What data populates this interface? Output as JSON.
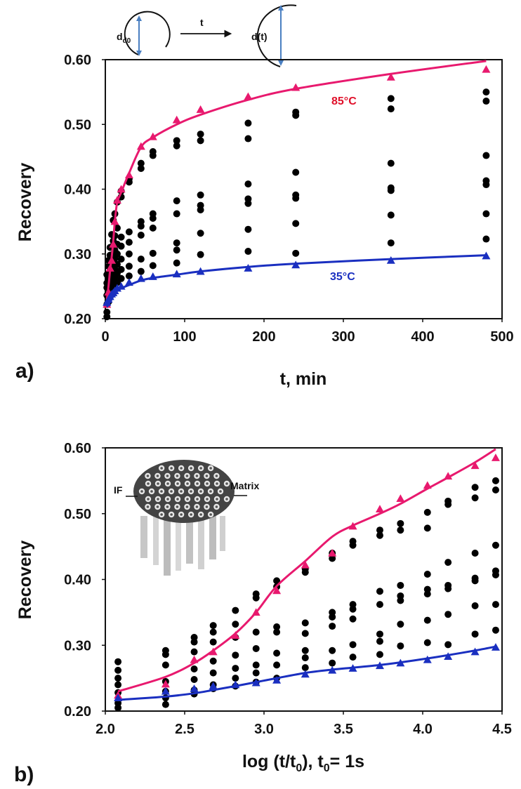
{
  "figure": {
    "panel_a_label": "a)",
    "panel_b_label": "b)",
    "inset_a": {
      "d0": "d0",
      "arrow_label": "t",
      "dt": "d(t)"
    },
    "inset_b": {
      "left_label": "IF",
      "right_label": "Matrix"
    }
  },
  "colors": {
    "hot": "#e8196e",
    "cold": "#1a2fc0",
    "points": "#000000",
    "label_hot": "#e0102a"
  },
  "chart_data": [
    {
      "type": "scatter",
      "xlabel": "t, min",
      "ylabel": "Recovery",
      "xlim": [
        0,
        500
      ],
      "ylim": [
        0.2,
        0.6
      ],
      "xticks": [
        "0",
        "100",
        "200",
        "300",
        "400",
        "500"
      ],
      "yticks": [
        "0.20",
        "0.30",
        "0.40",
        "0.50",
        "0.60"
      ],
      "x": [
        2,
        4,
        6,
        8,
        10,
        12,
        15,
        20,
        30,
        45,
        60,
        90,
        120,
        180,
        240,
        360,
        480
      ],
      "scatter_y": [
        [
          0.268,
          0.255,
          0.248,
          0.236,
          0.222,
          0.21,
          0.203
        ],
        [
          0.29,
          0.281,
          0.27,
          0.26,
          0.248,
          0.238,
          0.226
        ],
        [
          0.31,
          0.298,
          0.285,
          0.272,
          0.262,
          0.245,
          0.234
        ],
        [
          0.33,
          0.311,
          0.296,
          0.283,
          0.268,
          0.254,
          0.24
        ],
        [
          0.352,
          0.32,
          0.3,
          0.286,
          0.272,
          0.258,
          0.245
        ],
        [
          0.362,
          0.328,
          0.306,
          0.293,
          0.276,
          0.264,
          0.25
        ],
        [
          0.38,
          0.34,
          0.315,
          0.3,
          0.284,
          0.27,
          0.256
        ],
        [
          0.397,
          0.388,
          0.326,
          0.312,
          0.292,
          0.276,
          0.262
        ],
        [
          0.416,
          0.411,
          0.334,
          0.318,
          0.3,
          0.281,
          0.266
        ],
        [
          0.44,
          0.432,
          0.35,
          0.343,
          0.329,
          0.292,
          0.273
        ],
        [
          0.458,
          0.452,
          0.362,
          0.355,
          0.34,
          0.301,
          0.282
        ],
        [
          0.475,
          0.467,
          0.382,
          0.362,
          0.317,
          0.306,
          0.286
        ],
        [
          0.485,
          0.475,
          0.391,
          0.375,
          0.368,
          0.332,
          0.299
        ],
        [
          0.502,
          0.478,
          0.408,
          0.385,
          0.378,
          0.338,
          0.304
        ],
        [
          0.519,
          0.514,
          0.426,
          0.391,
          0.386,
          0.347,
          0.301
        ],
        [
          0.54,
          0.524,
          0.44,
          0.402,
          0.398,
          0.36,
          0.317
        ],
        [
          0.55,
          0.536,
          0.452,
          0.413,
          0.407,
          0.362,
          0.323
        ]
      ],
      "series": [
        {
          "label": "85°C",
          "color": "#e8196e",
          "x": [
            2,
            4,
            6,
            8,
            10,
            12,
            15,
            20,
            30,
            45,
            60,
            90,
            120,
            180,
            240,
            360,
            480
          ],
          "y": [
            0.222,
            0.241,
            0.278,
            0.29,
            0.315,
            0.35,
            0.383,
            0.4,
            0.422,
            0.466,
            0.481,
            0.507,
            0.523,
            0.543,
            0.557,
            0.573,
            0.585
          ],
          "fit_y": [
            0.23,
            0.25,
            0.275,
            0.295,
            0.32,
            0.35,
            0.38,
            0.395,
            0.425,
            0.465,
            0.48,
            0.5,
            0.515,
            0.538,
            0.555,
            0.578,
            0.598
          ]
        },
        {
          "label": "35°C",
          "color": "#1a2fc0",
          "x": [
            2,
            4,
            6,
            8,
            10,
            12,
            15,
            20,
            30,
            45,
            60,
            90,
            120,
            180,
            240,
            360,
            480
          ],
          "y": [
            0.225,
            0.23,
            0.234,
            0.238,
            0.24,
            0.243,
            0.247,
            0.25,
            0.256,
            0.262,
            0.265,
            0.269,
            0.273,
            0.278,
            0.283,
            0.29,
            0.297
          ],
          "fit_y": [
            0.218,
            0.222,
            0.226,
            0.23,
            0.235,
            0.24,
            0.243,
            0.247,
            0.252,
            0.259,
            0.263,
            0.268,
            0.273,
            0.28,
            0.285,
            0.292,
            0.298
          ]
        }
      ]
    },
    {
      "type": "scatter",
      "xlabel": "log (t/t",
      "xlabel_sub": "0",
      "xlabel_tail": "), t",
      "xlabel_sub2": "0",
      "xlabel_end": "= 1s",
      "ylabel": "Recovery",
      "xlim": [
        2.0,
        4.5
      ],
      "ylim": [
        0.2,
        0.6
      ],
      "xticks": [
        "2.0",
        "2.5",
        "3.0",
        "3.5",
        "4.0",
        "4.5"
      ],
      "yticks": [
        "0.20",
        "0.30",
        "0.40",
        "0.50",
        "0.60"
      ],
      "x": [
        2.08,
        2.38,
        2.56,
        2.68,
        2.82,
        2.95,
        3.08,
        3.26,
        3.43,
        3.56,
        3.73,
        3.86,
        4.03,
        4.16,
        4.33,
        4.46
      ],
      "series": [
        {
          "label": "85°C",
          "color": "#e8196e",
          "y": [
            0.224,
            0.241,
            0.278,
            0.29,
            0.315,
            0.35,
            0.383,
            0.422,
            0.44,
            0.481,
            0.507,
            0.523,
            0.543,
            0.557,
            0.573,
            0.585
          ],
          "fit_y": [
            0.23,
            0.252,
            0.273,
            0.292,
            0.318,
            0.35,
            0.39,
            0.428,
            0.465,
            0.482,
            0.5,
            0.515,
            0.538,
            0.555,
            0.578,
            0.598
          ]
        },
        {
          "label": "35°C",
          "color": "#1a2fc0",
          "y": [
            0.22,
            0.23,
            0.234,
            0.238,
            0.24,
            0.243,
            0.247,
            0.256,
            0.262,
            0.265,
            0.269,
            0.273,
            0.278,
            0.283,
            0.29,
            0.297
          ],
          "fit_y": [
            0.217,
            0.222,
            0.227,
            0.232,
            0.238,
            0.244,
            0.25,
            0.258,
            0.263,
            0.266,
            0.27,
            0.274,
            0.28,
            0.285,
            0.292,
            0.298
          ]
        }
      ]
    }
  ]
}
